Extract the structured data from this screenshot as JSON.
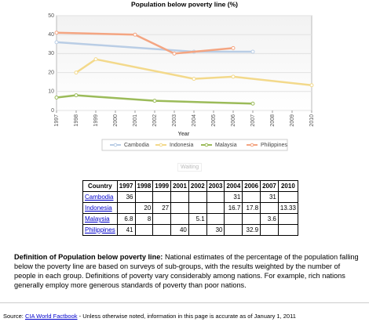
{
  "chart_data": {
    "type": "line",
    "title": "Population below poverty line (%)",
    "x_label": "Year",
    "xlim": [
      1997,
      2010
    ],
    "xticks": [
      1997,
      1998,
      1999,
      2000,
      2001,
      2002,
      2003,
      2004,
      2005,
      2006,
      2007,
      2008,
      2009,
      2010
    ],
    "ylim": [
      0,
      50
    ],
    "yticks": [
      0,
      10,
      20,
      30,
      40,
      50
    ],
    "grid": true,
    "legend": "bottom",
    "series": [
      {
        "name": "Cambodia",
        "color": "#b9cde5",
        "x": [
          1997,
          2004,
          2007
        ],
        "values": [
          36,
          31,
          31
        ]
      },
      {
        "name": "Indonesia",
        "color": "#f3d98b",
        "x": [
          1998,
          1999,
          2004,
          2006,
          2010
        ],
        "values": [
          20,
          27,
          16.7,
          17.8,
          13.33
        ]
      },
      {
        "name": "Malaysia",
        "color": "#9bbb59",
        "x": [
          1997,
          1998,
          2002,
          2007
        ],
        "values": [
          6.8,
          8,
          5.1,
          3.6
        ]
      },
      {
        "name": "Philippines",
        "color": "#f4a582",
        "x": [
          1997,
          2001,
          2003,
          2006
        ],
        "values": [
          41,
          40,
          30,
          32.9
        ]
      }
    ]
  },
  "button": "Waiting",
  "table": {
    "header": [
      "Country",
      "1997",
      "1998",
      "1999",
      "2001",
      "2002",
      "2003",
      "2004",
      "2006",
      "2007",
      "2010"
    ],
    "rows": [
      [
        "Cambodia",
        "36",
        null,
        null,
        null,
        null,
        null,
        "31",
        null,
        "31",
        null
      ],
      [
        "Indonesia",
        null,
        "20",
        "27",
        null,
        null,
        null,
        "16.7",
        "17.8",
        null,
        "13.33"
      ],
      [
        "Malaysia",
        "6.8",
        "8",
        null,
        null,
        "5.1",
        null,
        null,
        null,
        "3.6",
        null
      ],
      [
        "Philippines",
        "41",
        null,
        null,
        "40",
        null,
        "30",
        null,
        "32.9",
        null,
        null
      ]
    ]
  },
  "definition": {
    "heading": "Definition of Population below poverty line:",
    "text": "National estimates of the percentage of the population falling below the poverty line are based on surveys of sub-groups, with the results weighted by the number of people in each group. Definitions of poverty vary considerably among nations. For example, rich nations generally employ more generous standards of poverty than poor nations."
  },
  "source": {
    "label": "Source:",
    "link": "CIA World Factbook",
    "note": "- Unless otherwise noted, information in this page is accurate as of January 1, 2011"
  }
}
